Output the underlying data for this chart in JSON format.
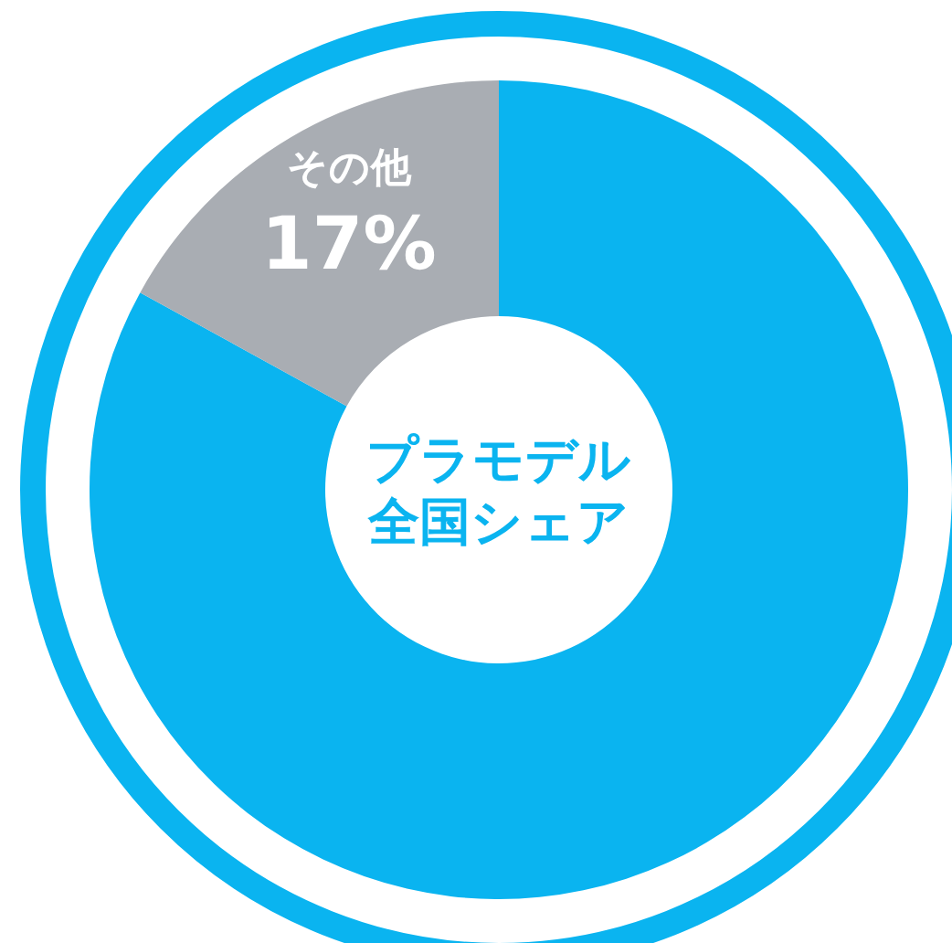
{
  "chart_data": {
    "type": "donut",
    "title": "プラモデル",
    "subtitle": "全国シェア",
    "categories": [
      null,
      "その他"
    ],
    "values": [
      83,
      17
    ],
    "colors": [
      "#0ab4f0",
      "#a9adb3"
    ],
    "value_labels": [
      null,
      "17%"
    ],
    "legend": false
  }
}
